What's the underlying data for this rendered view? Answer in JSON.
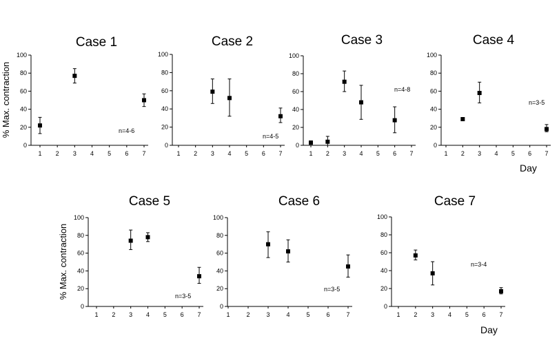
{
  "figure": {
    "y_axis_label": "% Max. contraction",
    "x_axis_label": "Day"
  },
  "chart_data": [
    {
      "type": "scatter",
      "title": "Case 1",
      "annotation": "n=4-6",
      "x_ticks": [
        1,
        2,
        3,
        4,
        5,
        6,
        7
      ],
      "y_ticks": [
        0,
        20,
        40,
        60,
        80,
        100
      ],
      "xlim": [
        1,
        7
      ],
      "ylim": [
        0,
        100
      ],
      "points": [
        {
          "x": 1,
          "y": 22,
          "lo": 13,
          "hi": 31
        },
        {
          "x": 3,
          "y": 77,
          "lo": 69,
          "hi": 85
        },
        {
          "x": 7,
          "y": 50,
          "lo": 43,
          "hi": 57
        }
      ]
    },
    {
      "type": "scatter",
      "title": "Case 2",
      "annotation": "n=4-5",
      "x_ticks": [
        1,
        2,
        3,
        4,
        5,
        6,
        7
      ],
      "y_ticks": [
        0,
        20,
        40,
        60,
        80,
        100
      ],
      "xlim": [
        1,
        7
      ],
      "ylim": [
        0,
        100
      ],
      "points": [
        {
          "x": 3,
          "y": 59,
          "lo": 46,
          "hi": 73
        },
        {
          "x": 4,
          "y": 52,
          "lo": 32,
          "hi": 73
        },
        {
          "x": 7,
          "y": 32,
          "lo": 25,
          "hi": 41
        }
      ]
    },
    {
      "type": "scatter",
      "title": "Case 3",
      "annotation": "n=4-8",
      "x_ticks": [
        1,
        2,
        3,
        4,
        5,
        6,
        7
      ],
      "y_ticks": [
        0,
        20,
        40,
        60,
        80,
        100
      ],
      "xlim": [
        1,
        7
      ],
      "ylim": [
        0,
        100
      ],
      "points": [
        {
          "x": 1,
          "y": 3,
          "lo": 1,
          "hi": 5
        },
        {
          "x": 2,
          "y": 4,
          "lo": 0,
          "hi": 10
        },
        {
          "x": 3,
          "y": 71,
          "lo": 60,
          "hi": 83
        },
        {
          "x": 4,
          "y": 48,
          "lo": 29,
          "hi": 67
        },
        {
          "x": 6,
          "y": 28,
          "lo": 14,
          "hi": 43
        }
      ]
    },
    {
      "type": "scatter",
      "title": "Case 4",
      "annotation": "n=3-5",
      "x_ticks": [
        1,
        2,
        3,
        4,
        5,
        6,
        7
      ],
      "y_ticks": [
        0,
        20,
        40,
        60,
        80,
        100
      ],
      "xlim": [
        1,
        7
      ],
      "ylim": [
        0,
        100
      ],
      "points": [
        {
          "x": 2,
          "y": 29,
          "lo": 29,
          "hi": 29
        },
        {
          "x": 3,
          "y": 58,
          "lo": 47,
          "hi": 70
        },
        {
          "x": 7,
          "y": 18,
          "lo": 15,
          "hi": 23
        }
      ]
    },
    {
      "type": "scatter",
      "title": "Case 5",
      "annotation": "n=3-5",
      "x_ticks": [
        1,
        2,
        3,
        4,
        5,
        6,
        7
      ],
      "y_ticks": [
        0,
        20,
        40,
        60,
        80,
        100
      ],
      "xlim": [
        1,
        7
      ],
      "ylim": [
        0,
        100
      ],
      "points": [
        {
          "x": 3,
          "y": 74,
          "lo": 64,
          "hi": 86
        },
        {
          "x": 4,
          "y": 78,
          "lo": 73,
          "hi": 83
        },
        {
          "x": 7,
          "y": 34,
          "lo": 26,
          "hi": 44
        }
      ]
    },
    {
      "type": "scatter",
      "title": "Case 6",
      "annotation": "n=3-5",
      "x_ticks": [
        1,
        2,
        3,
        4,
        5,
        6,
        7
      ],
      "y_ticks": [
        0,
        20,
        40,
        60,
        80,
        100
      ],
      "xlim": [
        1,
        7
      ],
      "ylim": [
        0,
        100
      ],
      "points": [
        {
          "x": 3,
          "y": 70,
          "lo": 55,
          "hi": 84
        },
        {
          "x": 4,
          "y": 62,
          "lo": 50,
          "hi": 75
        },
        {
          "x": 7,
          "y": 45,
          "lo": 33,
          "hi": 58
        }
      ]
    },
    {
      "type": "scatter",
      "title": "Case 7",
      "annotation": "n=3-4",
      "x_ticks": [
        1,
        2,
        3,
        4,
        5,
        6,
        7
      ],
      "y_ticks": [
        0,
        20,
        40,
        60,
        80,
        100
      ],
      "xlim": [
        1,
        7
      ],
      "ylim": [
        0,
        100
      ],
      "points": [
        {
          "x": 2,
          "y": 57,
          "lo": 52,
          "hi": 63
        },
        {
          "x": 3,
          "y": 37,
          "lo": 24,
          "hi": 50
        },
        {
          "x": 7,
          "y": 17,
          "lo": 14,
          "hi": 21
        }
      ]
    }
  ]
}
